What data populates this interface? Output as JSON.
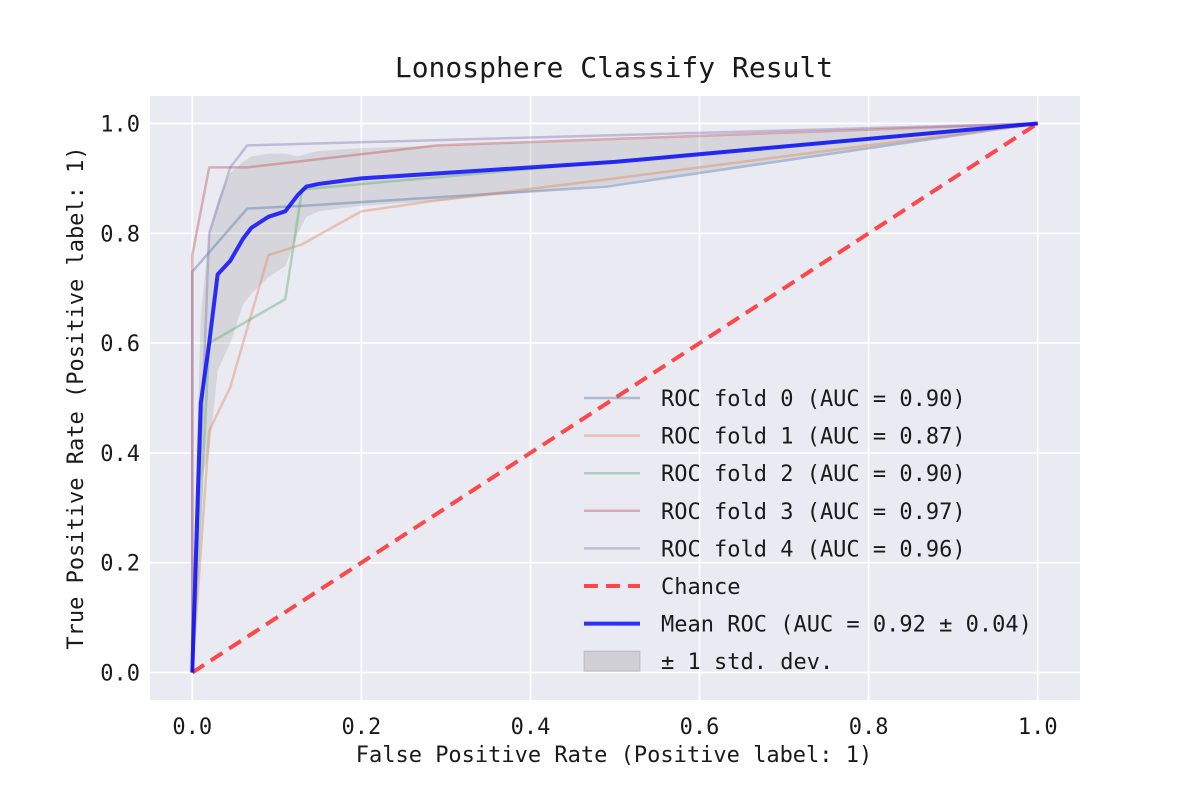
{
  "chart_data": {
    "type": "line",
    "title": "Lonosphere Classify Result",
    "xlabel": "False Positive Rate (Positive label: 1)",
    "ylabel": "True Positive Rate (Positive label: 1)",
    "xlim": [
      -0.05,
      1.05
    ],
    "ylim": [
      -0.05,
      1.05
    ],
    "xticks": [
      0.0,
      0.2,
      0.4,
      0.6,
      0.8,
      1.0
    ],
    "yticks": [
      0.0,
      0.2,
      0.4,
      0.6,
      0.8,
      1.0
    ],
    "xtick_labels": [
      "0.0",
      "0.2",
      "0.4",
      "0.6",
      "0.8",
      "1.0"
    ],
    "ytick_labels": [
      "0.0",
      "0.2",
      "0.4",
      "0.6",
      "0.8",
      "1.0"
    ],
    "grid": true,
    "background": "#eaeaf2",
    "legend_position": "lower right",
    "series": [
      {
        "name": "ROC fold 0 (AUC = 0.90)",
        "color": "#4c72b0",
        "opacity": 0.4,
        "width": 2.5,
        "dash": "",
        "x": [
          0,
          0,
          0.065,
          0.13,
          0.49,
          1.0
        ],
        "y": [
          0,
          0.73,
          0.845,
          0.85,
          0.885,
          1.0
        ]
      },
      {
        "name": "ROC fold 1 (AUC = 0.87)",
        "color": "#dd8452",
        "opacity": 0.4,
        "width": 2.5,
        "dash": "",
        "x": [
          0,
          0.02,
          0.045,
          0.09,
          0.13,
          0.2,
          0.29,
          0.5,
          1.0
        ],
        "y": [
          0,
          0.44,
          0.52,
          0.76,
          0.78,
          0.84,
          0.86,
          0.9,
          1.0
        ]
      },
      {
        "name": "ROC fold 2 (AUC = 0.90)",
        "color": "#55a868",
        "opacity": 0.4,
        "width": 2.5,
        "dash": "",
        "x": [
          0,
          0.02,
          0.065,
          0.11,
          0.13,
          1.0
        ],
        "y": [
          0,
          0.6,
          0.64,
          0.68,
          0.88,
          1.0
        ]
      },
      {
        "name": "ROC fold 3 (AUC = 0.97)",
        "color": "#c44e52",
        "opacity": 0.4,
        "width": 2.5,
        "dash": "",
        "x": [
          0,
          0,
          0.02,
          0.065,
          0.29,
          1.0
        ],
        "y": [
          0,
          0.76,
          0.92,
          0.92,
          0.96,
          1.0
        ]
      },
      {
        "name": "ROC fold 4 (AUC = 0.96)",
        "color": "#8172b3",
        "opacity": 0.4,
        "width": 2.5,
        "dash": "",
        "x": [
          0,
          0.02,
          0.045,
          0.065,
          1.0
        ],
        "y": [
          0,
          0.8,
          0.92,
          0.96,
          1.0
        ]
      },
      {
        "name": "Chance",
        "color": "#ff2020",
        "opacity": 0.8,
        "width": 4,
        "dash": "14 8",
        "x": [
          0,
          1.0
        ],
        "y": [
          0,
          1.0
        ]
      },
      {
        "name": "Mean ROC (AUC = 0.92 ± 0.04)",
        "color": "#0000ff",
        "opacity": 0.8,
        "width": 4,
        "dash": "",
        "x": [
          0,
          0.01,
          0.02,
          0.03,
          0.045,
          0.06,
          0.07,
          0.09,
          0.11,
          0.125,
          0.135,
          0.15,
          0.2,
          0.3,
          0.5,
          1.0
        ],
        "y": [
          0,
          0.49,
          0.6,
          0.725,
          0.75,
          0.79,
          0.81,
          0.83,
          0.84,
          0.87,
          0.885,
          0.89,
          0.9,
          0.91,
          0.93,
          1.0
        ]
      }
    ],
    "std_band": {
      "name": "± 1 std. dev.",
      "color": "#808080",
      "opacity": 0.2,
      "x": [
        0,
        0.01,
        0.02,
        0.03,
        0.045,
        0.06,
        0.07,
        0.09,
        0.11,
        0.125,
        0.135,
        0.15,
        0.2,
        0.3,
        0.5,
        1.0
      ],
      "upper": [
        0.1,
        0.65,
        0.8,
        0.86,
        0.91,
        0.93,
        0.94,
        0.945,
        0.945,
        0.94,
        0.945,
        0.95,
        0.955,
        0.96,
        0.97,
        1.0
      ],
      "lower": [
        0,
        0.35,
        0.4,
        0.55,
        0.6,
        0.67,
        0.69,
        0.72,
        0.74,
        0.8,
        0.83,
        0.84,
        0.85,
        0.86,
        0.89,
        1.0
      ]
    }
  }
}
